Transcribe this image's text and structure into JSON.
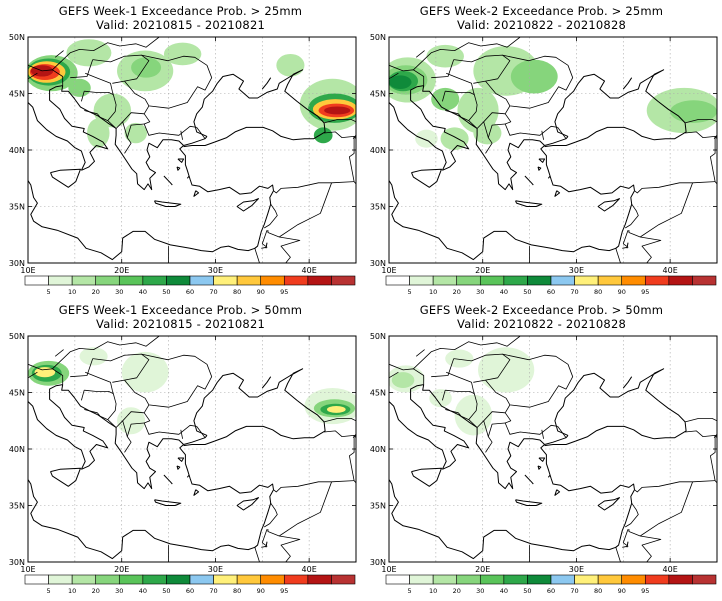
{
  "panels": [
    {
      "title": "GEFS Week-1 Exceedance Prob. > 25mm",
      "valid": "Valid: 20210815 - 20210821",
      "blobs": [
        {
          "lon": 12.5,
          "lat": 46.8,
          "rx": 2.8,
          "ry": 1.6,
          "cls": 3
        },
        {
          "lon": 12.2,
          "lat": 46.9,
          "rx": 2.3,
          "ry": 1.2,
          "cls": 5
        },
        {
          "lon": 12.0,
          "lat": 46.9,
          "rx": 2.0,
          "ry": 0.95,
          "cls": 9
        },
        {
          "lon": 11.8,
          "lat": 46.9,
          "rx": 1.6,
          "ry": 0.7,
          "cls": 11
        },
        {
          "lon": 11.5,
          "lat": 47.0,
          "rx": 1.2,
          "ry": 0.5,
          "cls": 12
        },
        {
          "lon": 16.5,
          "lat": 48.6,
          "rx": 2.4,
          "ry": 1.2,
          "cls": 2
        },
        {
          "lon": 22.5,
          "lat": 47.0,
          "rx": 3.0,
          "ry": 1.8,
          "cls": 2
        },
        {
          "lon": 22.6,
          "lat": 47.3,
          "rx": 1.6,
          "ry": 0.9,
          "cls": 3
        },
        {
          "lon": 26.5,
          "lat": 48.5,
          "rx": 2.0,
          "ry": 1.0,
          "cls": 2
        },
        {
          "lon": 19.0,
          "lat": 43.5,
          "rx": 2.0,
          "ry": 1.5,
          "cls": 2
        },
        {
          "lon": 17.5,
          "lat": 41.5,
          "rx": 1.2,
          "ry": 1.3,
          "cls": 2
        },
        {
          "lon": 15.5,
          "lat": 45.5,
          "rx": 1.2,
          "ry": 0.8,
          "cls": 3
        },
        {
          "lon": 21.5,
          "lat": 41.5,
          "rx": 1.2,
          "ry": 0.9,
          "cls": 2
        },
        {
          "lon": 42.5,
          "lat": 44.0,
          "rx": 3.5,
          "ry": 2.3,
          "cls": 2
        },
        {
          "lon": 42.7,
          "lat": 43.7,
          "rx": 2.8,
          "ry": 1.3,
          "cls": 5
        },
        {
          "lon": 42.8,
          "lat": 43.6,
          "rx": 2.4,
          "ry": 0.9,
          "cls": 9
        },
        {
          "lon": 42.9,
          "lat": 43.5,
          "rx": 1.9,
          "ry": 0.6,
          "cls": 11
        },
        {
          "lon": 43.0,
          "lat": 43.5,
          "rx": 1.4,
          "ry": 0.35,
          "cls": 12
        },
        {
          "lon": 41.5,
          "lat": 41.3,
          "rx": 1.0,
          "ry": 0.7,
          "cls": 5
        },
        {
          "lon": 38.0,
          "lat": 47.5,
          "rx": 1.5,
          "ry": 1.0,
          "cls": 2
        }
      ]
    },
    {
      "title": "GEFS Week-2 Exceedance Prob. > 25mm",
      "valid": "Valid: 20210822 - 20210828",
      "blobs": [
        {
          "lon": 12.0,
          "lat": 46.2,
          "rx": 3.0,
          "ry": 2.0,
          "cls": 2
        },
        {
          "lon": 11.8,
          "lat": 46.2,
          "rx": 2.3,
          "ry": 1.3,
          "cls": 3
        },
        {
          "lon": 11.5,
          "lat": 46.1,
          "rx": 1.6,
          "ry": 0.9,
          "cls": 5
        },
        {
          "lon": 11.2,
          "lat": 46.0,
          "rx": 1.2,
          "ry": 0.6,
          "cls": 6
        },
        {
          "lon": 16.0,
          "lat": 48.3,
          "rx": 2.0,
          "ry": 1.0,
          "cls": 2
        },
        {
          "lon": 22.5,
          "lat": 47.0,
          "rx": 3.5,
          "ry": 2.2,
          "cls": 2
        },
        {
          "lon": 25.5,
          "lat": 46.5,
          "rx": 2.5,
          "ry": 1.5,
          "cls": 3
        },
        {
          "lon": 19.5,
          "lat": 43.5,
          "rx": 2.2,
          "ry": 2.0,
          "cls": 2
        },
        {
          "lon": 16.0,
          "lat": 44.5,
          "rx": 1.5,
          "ry": 1.0,
          "cls": 3
        },
        {
          "lon": 20.5,
          "lat": 41.5,
          "rx": 1.5,
          "ry": 1.0,
          "cls": 2
        },
        {
          "lon": 17.0,
          "lat": 41.0,
          "rx": 1.5,
          "ry": 1.0,
          "cls": 2
        },
        {
          "lon": 41.5,
          "lat": 43.5,
          "rx": 4.0,
          "ry": 2.0,
          "cls": 2
        },
        {
          "lon": 42.5,
          "lat": 43.4,
          "rx": 2.5,
          "ry": 1.0,
          "cls": 3
        },
        {
          "lon": 14.0,
          "lat": 41.0,
          "rx": 1.2,
          "ry": 0.8,
          "cls": 1
        }
      ]
    },
    {
      "title": "GEFS Week-1 Exceedance Prob. > 50mm",
      "valid": "Valid: 20210815 - 20210821",
      "blobs": [
        {
          "lon": 12.2,
          "lat": 46.7,
          "rx": 2.2,
          "ry": 1.1,
          "cls": 3
        },
        {
          "lon": 12.0,
          "lat": 46.7,
          "rx": 1.6,
          "ry": 0.75,
          "cls": 5
        },
        {
          "lon": 11.8,
          "lat": 46.8,
          "rx": 1.1,
          "ry": 0.45,
          "cls": 8
        },
        {
          "lon": 17.0,
          "lat": 48.2,
          "rx": 1.5,
          "ry": 0.8,
          "cls": 1
        },
        {
          "lon": 22.5,
          "lat": 46.8,
          "rx": 2.5,
          "ry": 1.8,
          "cls": 1
        },
        {
          "lon": 21.0,
          "lat": 42.5,
          "rx": 1.5,
          "ry": 1.2,
          "cls": 1
        },
        {
          "lon": 42.5,
          "lat": 43.8,
          "rx": 3.0,
          "ry": 1.6,
          "cls": 1
        },
        {
          "lon": 42.7,
          "lat": 43.6,
          "rx": 2.2,
          "ry": 0.8,
          "cls": 3
        },
        {
          "lon": 42.8,
          "lat": 43.5,
          "rx": 1.6,
          "ry": 0.5,
          "cls": 5
        },
        {
          "lon": 42.9,
          "lat": 43.5,
          "rx": 1.0,
          "ry": 0.3,
          "cls": 8
        }
      ]
    },
    {
      "title": "GEFS Week-2 Exceedance Prob. > 50mm",
      "valid": "Valid: 20210822 - 20210828",
      "blobs": [
        {
          "lon": 11.8,
          "lat": 46.2,
          "rx": 2.0,
          "ry": 1.2,
          "cls": 1
        },
        {
          "lon": 11.5,
          "lat": 46.1,
          "rx": 1.2,
          "ry": 0.7,
          "cls": 2
        },
        {
          "lon": 22.5,
          "lat": 47.0,
          "rx": 3.0,
          "ry": 2.0,
          "cls": 1
        },
        {
          "lon": 19.0,
          "lat": 43.0,
          "rx": 2.0,
          "ry": 1.8,
          "cls": 1
        },
        {
          "lon": 15.5,
          "lat": 44.5,
          "rx": 1.2,
          "ry": 0.8,
          "cls": 1
        },
        {
          "lon": 17.5,
          "lat": 48.0,
          "rx": 1.5,
          "ry": 0.8,
          "cls": 1
        }
      ]
    }
  ],
  "axes": {
    "lat_labels": [
      "50N",
      "45N",
      "40N",
      "35N",
      "30N"
    ],
    "lat_values": [
      50,
      45,
      40,
      35,
      30
    ],
    "lon_labels": [
      "10E",
      "20E",
      "30E",
      "40E"
    ],
    "lon_values": [
      10,
      20,
      30,
      40
    ],
    "lon_range": [
      10,
      45
    ],
    "lat_range": [
      30,
      50
    ]
  },
  "legend": {
    "thresholds": [
      "5",
      "10",
      "20",
      "30",
      "40",
      "50",
      "60",
      "70",
      "80",
      "90",
      "95"
    ],
    "colors": [
      "#ffffff",
      "#e0f5d8",
      "#b4e6a6",
      "#86d57c",
      "#5ac45a",
      "#2ea84a",
      "#0f8a3a",
      "#8cc8f0",
      "#fff07a",
      "#ffc83c",
      "#ff8c00",
      "#f03c1e",
      "#b41414",
      "#b83232"
    ]
  },
  "palette": {
    "coast": "#000000",
    "grid": "#aaaaaa",
    "class_colors": [
      "#ffffff",
      "#e0f5d8",
      "#b4e6a6",
      "#86d57c",
      "#5ac45a",
      "#2ea84a",
      "#0f8a3a",
      "#8cc8f0",
      "#fff07a",
      "#ffc83c",
      "#ff8c00",
      "#f03c1e",
      "#b41414"
    ]
  }
}
